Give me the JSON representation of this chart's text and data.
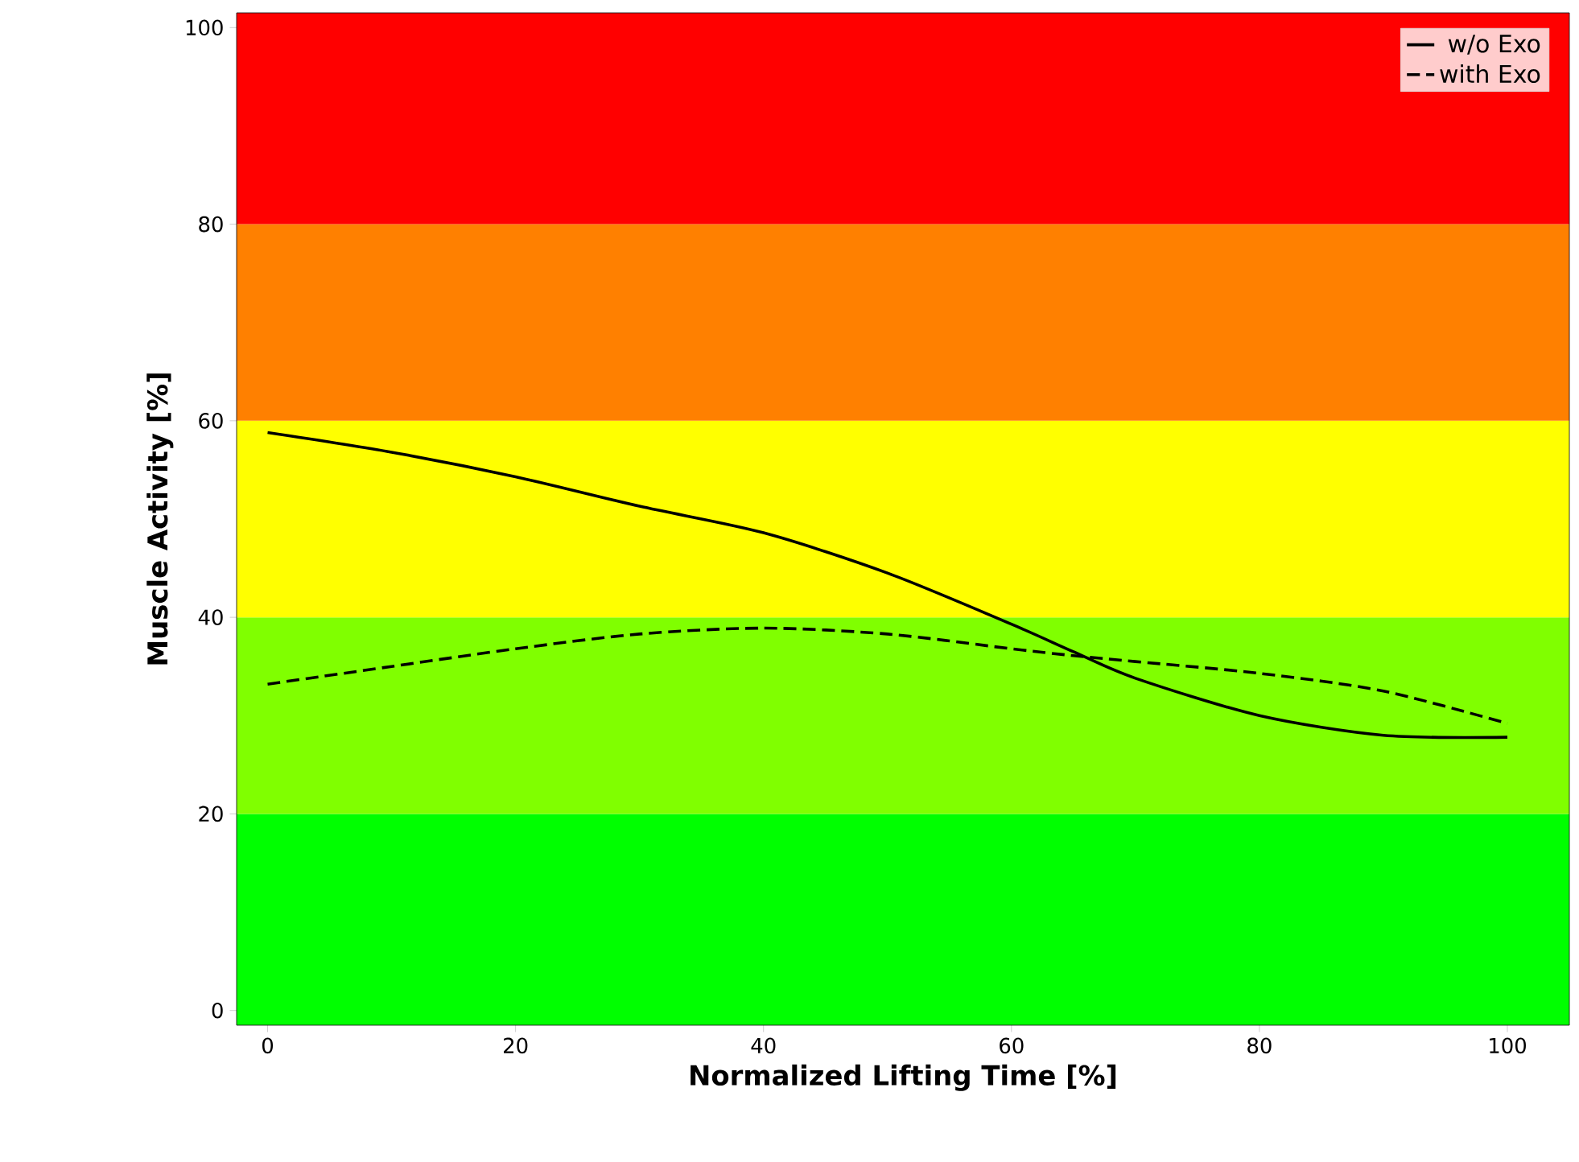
{
  "chart_data": {
    "type": "line",
    "xlabel": "Normalized Lifting Time [%]",
    "ylabel": "Muscle Activity [%]",
    "xlim": [
      -2.5,
      105
    ],
    "ylim": [
      -1.5,
      101.5
    ],
    "xticks": [
      0,
      20,
      40,
      60,
      80,
      100
    ],
    "yticks": [
      0,
      20,
      40,
      60,
      80,
      100
    ],
    "legend": "top right",
    "bands": [
      {
        "axis": "y",
        "from": -1.5,
        "to": 20,
        "color": "#00ff00"
      },
      {
        "axis": "y",
        "from": 20,
        "to": 40,
        "color": "#80ff00"
      },
      {
        "axis": "y",
        "from": 40,
        "to": 60,
        "color": "#ffff00"
      },
      {
        "axis": "y",
        "from": 60,
        "to": 80,
        "color": "#ff8000"
      },
      {
        "axis": "y",
        "from": 80,
        "to": 101.5,
        "color": "#ff0000"
      }
    ],
    "x": [
      0,
      10,
      20,
      30,
      40,
      50,
      60,
      65,
      70,
      80,
      90,
      100
    ],
    "series": [
      {
        "name": "w/o Exo",
        "color": "#000000",
        "line_style": "solid",
        "values": [
          58.8,
          56.8,
          54.3,
          51.3,
          48.6,
          44.5,
          39.3,
          36.5,
          33.8,
          30.0,
          28.0,
          27.8
        ]
      },
      {
        "name": "with Exo",
        "color": "#000000",
        "line_style": "dashed",
        "values": [
          33.2,
          35.0,
          36.8,
          38.3,
          38.9,
          38.3,
          36.8,
          36.1,
          35.5,
          34.3,
          32.5,
          29.2
        ]
      }
    ]
  }
}
